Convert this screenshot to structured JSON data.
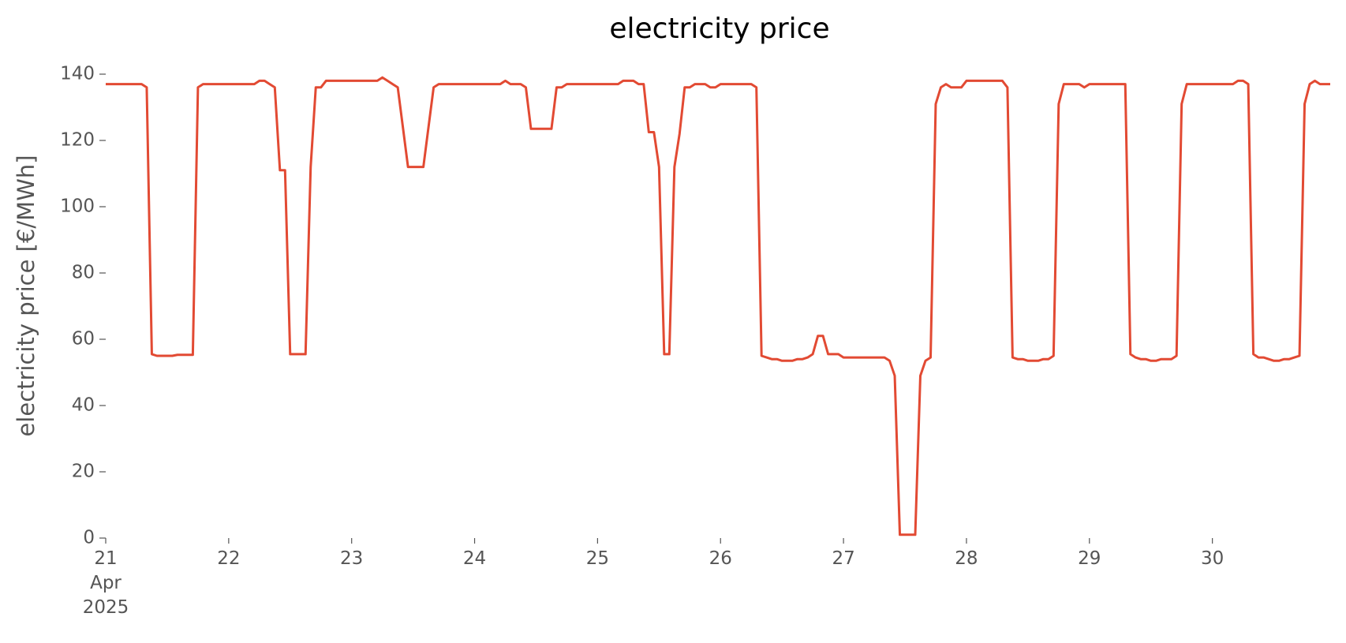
{
  "chart_data": {
    "type": "line",
    "title": "electricity price",
    "ylabel": "electricity price [€/MWh]",
    "color": "#E24A33",
    "xlim": [
      "2025-04-21 00:00",
      "2025-04-30 23:00"
    ],
    "xticks": [
      {
        "value": "2025-04-21 00:00",
        "label": "21\nApr\n2025"
      },
      {
        "value": "2025-04-22 00:00",
        "label": "22"
      },
      {
        "value": "2025-04-23 00:00",
        "label": "23"
      },
      {
        "value": "2025-04-24 00:00",
        "label": "24"
      },
      {
        "value": "2025-04-25 00:00",
        "label": "25"
      },
      {
        "value": "2025-04-26 00:00",
        "label": "26"
      },
      {
        "value": "2025-04-27 00:00",
        "label": "27"
      },
      {
        "value": "2025-04-28 00:00",
        "label": "28"
      },
      {
        "value": "2025-04-29 00:00",
        "label": "29"
      },
      {
        "value": "2025-04-30 00:00",
        "label": "30"
      }
    ],
    "ylim": [
      0,
      140
    ],
    "yticks": [
      0,
      20,
      40,
      60,
      80,
      100,
      120,
      140
    ],
    "grid": false,
    "x": [
      "2025-04-21 00:00",
      "2025-04-21 01:00",
      "2025-04-21 02:00",
      "2025-04-21 03:00",
      "2025-04-21 04:00",
      "2025-04-21 05:00",
      "2025-04-21 06:00",
      "2025-04-21 07:00",
      "2025-04-21 08:00",
      "2025-04-21 09:00",
      "2025-04-21 10:00",
      "2025-04-21 11:00",
      "2025-04-21 12:00",
      "2025-04-21 13:00",
      "2025-04-21 14:00",
      "2025-04-21 15:00",
      "2025-04-21 16:00",
      "2025-04-21 17:00",
      "2025-04-21 18:00",
      "2025-04-21 19:00",
      "2025-04-21 20:00",
      "2025-04-21 21:00",
      "2025-04-21 22:00",
      "2025-04-21 23:00",
      "2025-04-22 00:00",
      "2025-04-22 01:00",
      "2025-04-22 02:00",
      "2025-04-22 03:00",
      "2025-04-22 04:00",
      "2025-04-22 05:00",
      "2025-04-22 06:00",
      "2025-04-22 07:00",
      "2025-04-22 08:00",
      "2025-04-22 09:00",
      "2025-04-22 10:00",
      "2025-04-22 11:00",
      "2025-04-22 12:00",
      "2025-04-22 13:00",
      "2025-04-22 14:00",
      "2025-04-22 15:00",
      "2025-04-22 16:00",
      "2025-04-22 17:00",
      "2025-04-22 18:00",
      "2025-04-22 19:00",
      "2025-04-22 20:00",
      "2025-04-22 21:00",
      "2025-04-22 22:00",
      "2025-04-22 23:00",
      "2025-04-23 00:00",
      "2025-04-23 01:00",
      "2025-04-23 02:00",
      "2025-04-23 03:00",
      "2025-04-23 04:00",
      "2025-04-23 05:00",
      "2025-04-23 06:00",
      "2025-04-23 07:00",
      "2025-04-23 08:00",
      "2025-04-23 09:00",
      "2025-04-23 10:00",
      "2025-04-23 11:00",
      "2025-04-23 12:00",
      "2025-04-23 13:00",
      "2025-04-23 14:00",
      "2025-04-23 15:00",
      "2025-04-23 16:00",
      "2025-04-23 17:00",
      "2025-04-23 18:00",
      "2025-04-23 19:00",
      "2025-04-23 20:00",
      "2025-04-23 21:00",
      "2025-04-23 22:00",
      "2025-04-23 23:00",
      "2025-04-24 00:00",
      "2025-04-24 01:00",
      "2025-04-24 02:00",
      "2025-04-24 03:00",
      "2025-04-24 04:00",
      "2025-04-24 05:00",
      "2025-04-24 06:00",
      "2025-04-24 07:00",
      "2025-04-24 08:00",
      "2025-04-24 09:00",
      "2025-04-24 10:00",
      "2025-04-24 11:00",
      "2025-04-24 12:00",
      "2025-04-24 13:00",
      "2025-04-24 14:00",
      "2025-04-24 15:00",
      "2025-04-24 16:00",
      "2025-04-24 17:00",
      "2025-04-24 18:00",
      "2025-04-24 19:00",
      "2025-04-24 20:00",
      "2025-04-24 21:00",
      "2025-04-24 22:00",
      "2025-04-24 23:00",
      "2025-04-25 00:00",
      "2025-04-25 01:00",
      "2025-04-25 02:00",
      "2025-04-25 03:00",
      "2025-04-25 04:00",
      "2025-04-25 05:00",
      "2025-04-25 06:00",
      "2025-04-25 07:00",
      "2025-04-25 08:00",
      "2025-04-25 09:00",
      "2025-04-25 10:00",
      "2025-04-25 11:00",
      "2025-04-25 12:00",
      "2025-04-25 13:00",
      "2025-04-25 14:00",
      "2025-04-25 15:00",
      "2025-04-25 16:00",
      "2025-04-25 17:00",
      "2025-04-25 18:00",
      "2025-04-25 19:00",
      "2025-04-25 20:00",
      "2025-04-25 21:00",
      "2025-04-25 22:00",
      "2025-04-25 23:00",
      "2025-04-26 00:00",
      "2025-04-26 01:00",
      "2025-04-26 02:00",
      "2025-04-26 03:00",
      "2025-04-26 04:00",
      "2025-04-26 05:00",
      "2025-04-26 06:00",
      "2025-04-26 07:00",
      "2025-04-26 08:00",
      "2025-04-26 09:00",
      "2025-04-26 10:00",
      "2025-04-26 11:00",
      "2025-04-26 12:00",
      "2025-04-26 13:00",
      "2025-04-26 14:00",
      "2025-04-26 15:00",
      "2025-04-26 16:00",
      "2025-04-26 17:00",
      "2025-04-26 18:00",
      "2025-04-26 19:00",
      "2025-04-26 20:00",
      "2025-04-26 21:00",
      "2025-04-26 22:00",
      "2025-04-26 23:00",
      "2025-04-27 00:00",
      "2025-04-27 01:00",
      "2025-04-27 02:00",
      "2025-04-27 03:00",
      "2025-04-27 04:00",
      "2025-04-27 05:00",
      "2025-04-27 06:00",
      "2025-04-27 07:00",
      "2025-04-27 08:00",
      "2025-04-27 09:00",
      "2025-04-27 10:00",
      "2025-04-27 11:00",
      "2025-04-27 12:00",
      "2025-04-27 13:00",
      "2025-04-27 14:00",
      "2025-04-27 15:00",
      "2025-04-27 16:00",
      "2025-04-27 17:00",
      "2025-04-27 18:00",
      "2025-04-27 19:00",
      "2025-04-27 20:00",
      "2025-04-27 21:00",
      "2025-04-27 22:00",
      "2025-04-27 23:00",
      "2025-04-28 00:00",
      "2025-04-28 01:00",
      "2025-04-28 02:00",
      "2025-04-28 03:00",
      "2025-04-28 04:00",
      "2025-04-28 05:00",
      "2025-04-28 06:00",
      "2025-04-28 07:00",
      "2025-04-28 08:00",
      "2025-04-28 09:00",
      "2025-04-28 10:00",
      "2025-04-28 11:00",
      "2025-04-28 12:00",
      "2025-04-28 13:00",
      "2025-04-28 14:00",
      "2025-04-28 15:00",
      "2025-04-28 16:00",
      "2025-04-28 17:00",
      "2025-04-28 18:00",
      "2025-04-28 19:00",
      "2025-04-28 20:00",
      "2025-04-28 21:00",
      "2025-04-28 22:00",
      "2025-04-28 23:00",
      "2025-04-29 00:00",
      "2025-04-29 01:00",
      "2025-04-29 02:00",
      "2025-04-29 03:00",
      "2025-04-29 04:00",
      "2025-04-29 05:00",
      "2025-04-29 06:00",
      "2025-04-29 07:00",
      "2025-04-29 08:00",
      "2025-04-29 09:00",
      "2025-04-29 10:00",
      "2025-04-29 11:00",
      "2025-04-29 12:00",
      "2025-04-29 13:00",
      "2025-04-29 14:00",
      "2025-04-29 15:00",
      "2025-04-29 16:00",
      "2025-04-29 17:00",
      "2025-04-29 18:00",
      "2025-04-29 19:00",
      "2025-04-29 20:00",
      "2025-04-29 21:00",
      "2025-04-29 22:00",
      "2025-04-29 23:00",
      "2025-04-30 00:00",
      "2025-04-30 01:00",
      "2025-04-30 02:00",
      "2025-04-30 03:00",
      "2025-04-30 04:00",
      "2025-04-30 05:00",
      "2025-04-30 06:00",
      "2025-04-30 07:00",
      "2025-04-30 08:00",
      "2025-04-30 09:00",
      "2025-04-30 10:00",
      "2025-04-30 11:00",
      "2025-04-30 12:00",
      "2025-04-30 13:00",
      "2025-04-30 14:00",
      "2025-04-30 15:00",
      "2025-04-30 16:00",
      "2025-04-30 17:00",
      "2025-04-30 18:00",
      "2025-04-30 19:00",
      "2025-04-30 20:00",
      "2025-04-30 21:00",
      "2025-04-30 22:00",
      "2025-04-30 23:00"
    ],
    "values": [
      137,
      137,
      137,
      137,
      137,
      137,
      137,
      137,
      136,
      55.5,
      55,
      55,
      55,
      55,
      55.3,
      55.3,
      55.3,
      55.3,
      136,
      137,
      137,
      137,
      137,
      137,
      137,
      137,
      137,
      137,
      137,
      137,
      138,
      138,
      137,
      136,
      111,
      111,
      55.5,
      55.5,
      55.5,
      55.5,
      112,
      136,
      136,
      138,
      138,
      138,
      138,
      138,
      138,
      138,
      138,
      138,
      138,
      138,
      139,
      138,
      137,
      136,
      124,
      112,
      112,
      112,
      112,
      124,
      136,
      137,
      137,
      137,
      137,
      137,
      137,
      137,
      137,
      137,
      137,
      137,
      137,
      137,
      138,
      137,
      137,
      137,
      136,
      123.5,
      123.5,
      123.5,
      123.5,
      123.5,
      136,
      136,
      137,
      137,
      137,
      137,
      137,
      137,
      137,
      137,
      137,
      137,
      137,
      138,
      138,
      138,
      137,
      137,
      122.5,
      122.5,
      112,
      55.5,
      55.5,
      112,
      122,
      136,
      136,
      137,
      137,
      137,
      136,
      136,
      137,
      137,
      137,
      137,
      137,
      137,
      137,
      136,
      55,
      54.5,
      54,
      54,
      53.5,
      53.5,
      53.5,
      54,
      54,
      54.5,
      55.5,
      61,
      61,
      55.5,
      55.5,
      55.5,
      54.5,
      54.5,
      54.5,
      54.5,
      54.5,
      54.5,
      54.5,
      54.5,
      54.5,
      53.5,
      49,
      1,
      1,
      1,
      1,
      49,
      53.5,
      54.5,
      131,
      136,
      137,
      136,
      136,
      136,
      138,
      138,
      138,
      138,
      138,
      138,
      138,
      138,
      136,
      54.5,
      54,
      54,
      53.5,
      53.5,
      53.5,
      54,
      54,
      55,
      131,
      137,
      137,
      137,
      137,
      136,
      137,
      137,
      137,
      137,
      137,
      137,
      137,
      137,
      55.5,
      54.5,
      54,
      54,
      53.5,
      53.5,
      54,
      54,
      54,
      55,
      131,
      137,
      137,
      137,
      137,
      137,
      137,
      137,
      137,
      137,
      137,
      138,
      138,
      137,
      55.5,
      54.5,
      54.5,
      54,
      53.5,
      53.5,
      54,
      54,
      54.5,
      55,
      131,
      137,
      138,
      137,
      137,
      137
    ]
  }
}
